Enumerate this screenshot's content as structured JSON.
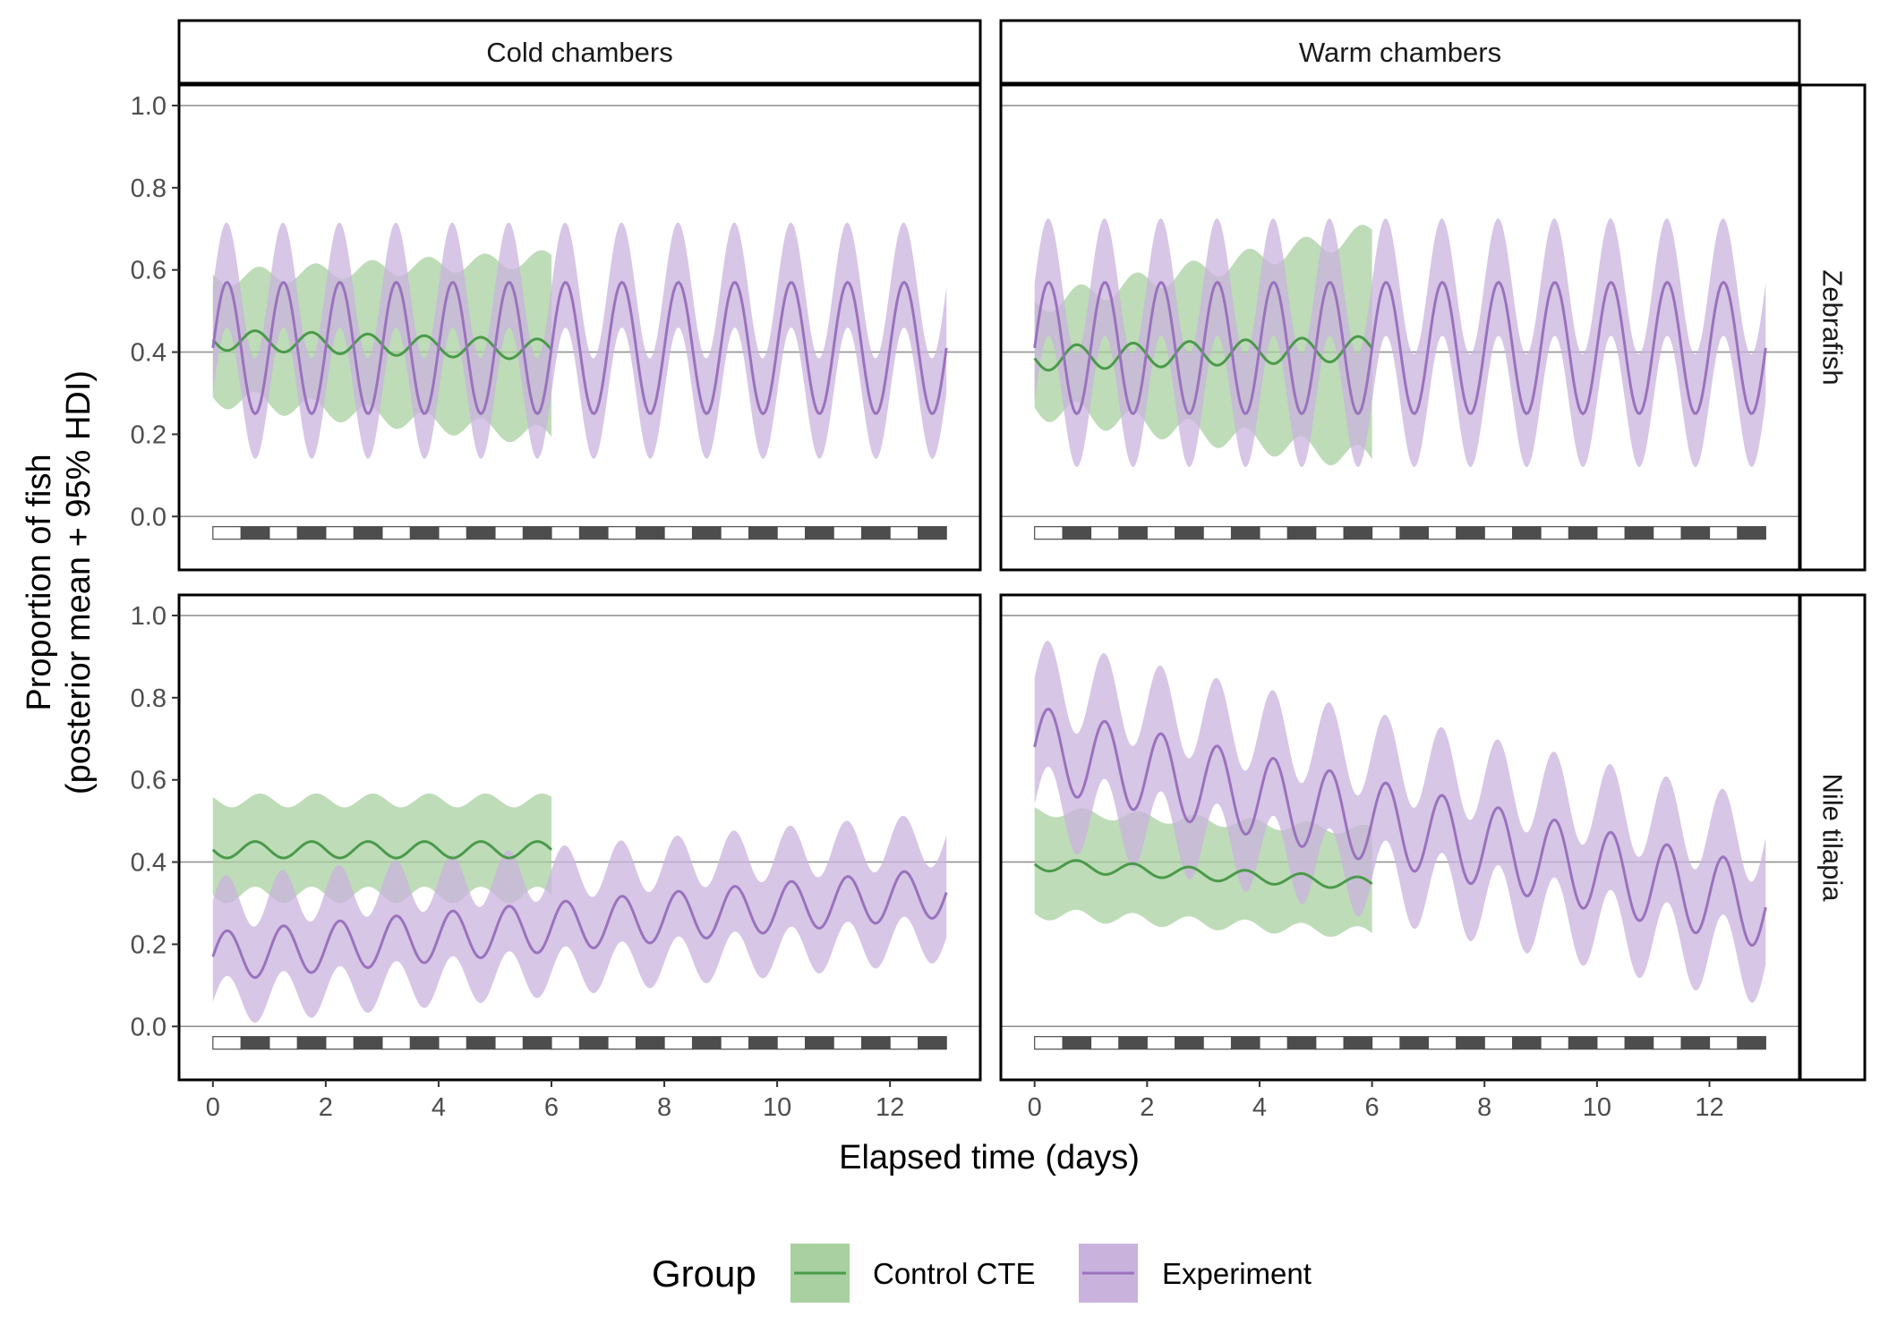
{
  "chart_data": {
    "type": "line",
    "facets": {
      "columns": [
        "Cold chambers",
        "Warm chambers"
      ],
      "rows": [
        "Zebrafish",
        "Nile tilapia"
      ]
    },
    "xlabel": "Elapsed time (days)",
    "ylabel_line1": "Proportion of fish",
    "ylabel_line2": "(posterior mean + 95% HDI)",
    "xlim": [
      -0.6,
      13.6
    ],
    "ylim": [
      -0.13,
      1.05
    ],
    "x_ticks": [
      "0",
      "2",
      "4",
      "6",
      "8",
      "10",
      "12"
    ],
    "y_ticks": [
      "0.0",
      "0.2",
      "0.4",
      "0.6",
      "0.8",
      "1.0"
    ],
    "reference_lines": [
      0.4,
      1.0,
      0.0
    ],
    "light_dark_bar": {
      "y_center": -0.04,
      "cycle_days": 1,
      "start": 0,
      "end": 13
    },
    "legend": {
      "title": "Group",
      "position": "bottom",
      "entries": [
        {
          "name": "Control CTE",
          "line_color": "#4a9a4a",
          "band_color": "#a8d0a0"
        },
        {
          "name": "Experiment",
          "line_color": "#9a72bd",
          "band_color": "#c9b3dd"
        }
      ]
    },
    "panels": [
      {
        "column": "Cold chambers",
        "row": "Zebrafish",
        "series": [
          {
            "name": "Control CTE",
            "x_range": [
              0,
              6
            ],
            "mean": 0.43,
            "trend": -0.004,
            "amplitude": 0.025,
            "period": 1.0,
            "phase": 0.5,
            "ci_low": 0.14,
            "ci_high": 0.15,
            "ci_growth": 0.012
          },
          {
            "name": "Experiment",
            "x_range": [
              0,
              13
            ],
            "mean": 0.41,
            "trend": 0.0,
            "amplitude": 0.16,
            "period": 1.0,
            "phase": 0.0,
            "ci_low": 0.11,
            "ci_high": 0.14,
            "ci_growth": 0.0
          }
        ]
      },
      {
        "column": "Warm chambers",
        "row": "Zebrafish",
        "series": [
          {
            "name": "Control CTE",
            "x_range": [
              0,
              6
            ],
            "mean": 0.385,
            "trend": 0.004,
            "amplitude": 0.03,
            "period": 1.0,
            "phase": 0.5,
            "ci_low": 0.12,
            "ci_high": 0.13,
            "ci_growth": 0.025
          },
          {
            "name": "Experiment",
            "x_range": [
              0,
              13
            ],
            "mean": 0.41,
            "trend": 0.0,
            "amplitude": 0.16,
            "period": 1.0,
            "phase": 0.0,
            "ci_low": 0.13,
            "ci_high": 0.15,
            "ci_growth": 0.0
          }
        ]
      },
      {
        "column": "Cold chambers",
        "row": "Nile tilapia",
        "series": [
          {
            "name": "Control CTE",
            "x_range": [
              0,
              6
            ],
            "mean": 0.43,
            "trend": 0.0,
            "amplitude": 0.02,
            "period": 1.0,
            "phase": 0.5,
            "ci_low": 0.11,
            "ci_high": 0.12,
            "ci_growth": 0.0
          },
          {
            "name": "Experiment",
            "x_range": [
              0,
              13
            ],
            "mean": 0.17,
            "trend": 0.012,
            "amplitude": 0.06,
            "period": 1.0,
            "phase": 0.0,
            "ci_low": 0.11,
            "ci_high": 0.13,
            "ci_growth": 0.0
          }
        ]
      },
      {
        "column": "Warm chambers",
        "row": "Nile tilapia",
        "series": [
          {
            "name": "Control CTE",
            "x_range": [
              0,
              6
            ],
            "mean": 0.395,
            "trend": -0.008,
            "amplitude": 0.015,
            "period": 1.0,
            "phase": 0.5,
            "ci_low": 0.12,
            "ci_high": 0.13,
            "ci_growth": 0.0
          },
          {
            "name": "Experiment",
            "x_range": [
              0,
              13
            ],
            "mean": 0.68,
            "trend": -0.03,
            "amplitude": 0.1,
            "period": 1.0,
            "phase": 0.0,
            "ci_low": 0.14,
            "ci_high": 0.16,
            "ci_growth": 0.0
          }
        ]
      }
    ]
  }
}
